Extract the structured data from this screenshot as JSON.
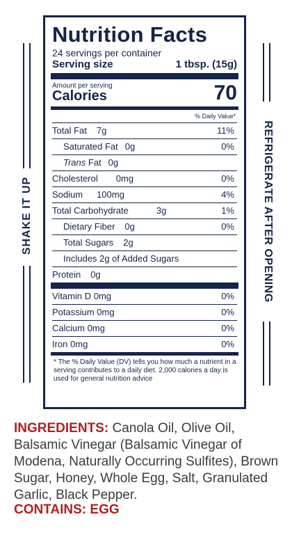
{
  "side": {
    "left_text": "SHAKE IT UP",
    "right_text": "REFRIGERATE AFTER OPENING"
  },
  "label": {
    "title": "Nutrition Facts",
    "servings": "24 servings per container",
    "serving_size_label": "Serving size",
    "serving_size_value": "1 tbsp. (15g)",
    "amount_per_serving": "Amount per serving",
    "calories_label": "Calories",
    "calories_value": "70",
    "dv_header": "% Daily Value*",
    "rows": [
      {
        "label": "Total Fat",
        "amount": "7g",
        "pct": "11%"
      },
      {
        "label": "Saturated Fat",
        "amount": "0g",
        "pct": "0%"
      },
      {
        "label_italic": "Trans",
        "label": " Fat",
        "amount": "0g",
        "pct": ""
      },
      {
        "label": "Cholesterol",
        "amount": "0mg",
        "pct": "0%"
      },
      {
        "label": "Sodium",
        "amount": "100mg",
        "pct": "4%"
      },
      {
        "label": "Total Carbohydrate",
        "amount": "3g",
        "pct": "1%"
      },
      {
        "label": "Dietary Fiber",
        "amount": "0g",
        "pct": "0%"
      },
      {
        "label": "Total Sugars",
        "amount": "2g",
        "pct": ""
      },
      {
        "label": "Includes 2g of Added Sugars",
        "amount": "",
        "pct": ""
      },
      {
        "label": "Protein",
        "amount": "0g",
        "pct": ""
      }
    ],
    "vitamins": [
      {
        "label": "Vitamin D 0mg",
        "pct": "0%"
      },
      {
        "label": "Potassium 0mg",
        "pct": "0%"
      },
      {
        "label": "Calcium 0mg",
        "pct": "0%"
      },
      {
        "label": "Iron 0mg",
        "pct": "0%"
      }
    ],
    "footnote": "* The % Daily Value (DV) tells you how much a nutrient in a serving contributes to a daily diet. 2,000 calories a day is used for general nutrition advice"
  },
  "ingredients": {
    "heading": "INGREDIENTS:",
    "text": "Canola Oil, Olive Oil, Balsamic Vinegar (Balsamic Vinegar of Modena, Naturally Occurring Sulfites), Brown Sugar, Honey, Whole Egg, Salt, Granulated Garlic, Black Pepper."
  },
  "contains": "CONTAINS: EGG"
}
